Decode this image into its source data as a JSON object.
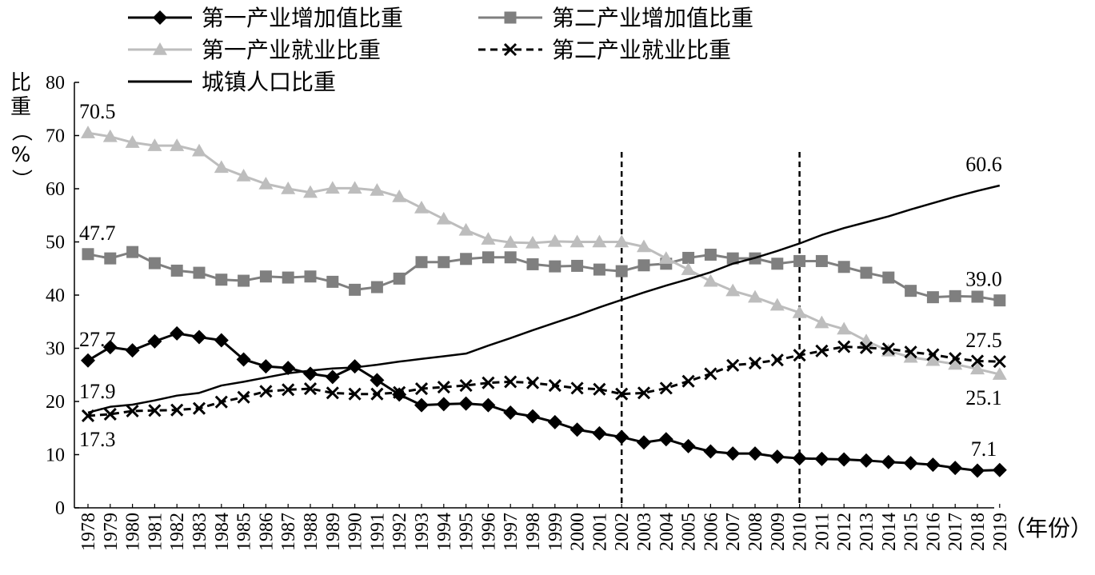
{
  "chart_data": {
    "type": "line",
    "ylabel": "比重（%）",
    "xunit": "（年份）",
    "ylim": [
      0,
      80
    ],
    "yticks": [
      0,
      10,
      20,
      30,
      40,
      50,
      60,
      70,
      80
    ],
    "grid": false,
    "legend_position": "top",
    "x": [
      "1978",
      "1979",
      "1980",
      "1981",
      "1982",
      "1983",
      "1984",
      "1985",
      "1986",
      "1987",
      "1988",
      "1989",
      "1990",
      "1991",
      "1992",
      "1993",
      "1994",
      "1995",
      "1996",
      "1997",
      "1998",
      "1999",
      "2000",
      "2001",
      "2002",
      "2003",
      "2004",
      "2005",
      "2006",
      "2007",
      "2008",
      "2009",
      "2010",
      "2011",
      "2012",
      "2013",
      "2014",
      "2015",
      "2016",
      "2017",
      "2018",
      "2019"
    ],
    "vertical_reference_lines": [
      "2002",
      "2010"
    ],
    "series": [
      {
        "name": "第一产业增加值比重",
        "color": "#000000",
        "marker": "diamond",
        "line_style": "solid",
        "values": [
          27.7,
          30.2,
          29.6,
          31.3,
          32.8,
          32.1,
          31.5,
          27.9,
          26.6,
          26.3,
          25.2,
          24.6,
          26.6,
          24.0,
          21.3,
          19.3,
          19.5,
          19.6,
          19.3,
          17.9,
          17.2,
          16.1,
          14.7,
          14.0,
          13.3,
          12.3,
          12.9,
          11.6,
          10.6,
          10.2,
          10.2,
          9.6,
          9.3,
          9.2,
          9.1,
          8.9,
          8.6,
          8.4,
          8.1,
          7.5,
          7.0,
          7.1
        ]
      },
      {
        "name": "第二产业增加值比重",
        "color": "#7f7f7f",
        "marker": "square",
        "line_style": "solid",
        "values": [
          47.7,
          46.9,
          48.1,
          46.0,
          44.6,
          44.2,
          42.9,
          42.7,
          43.5,
          43.3,
          43.5,
          42.5,
          41.0,
          41.5,
          43.1,
          46.2,
          46.2,
          46.8,
          47.1,
          47.1,
          45.8,
          45.4,
          45.5,
          44.8,
          44.5,
          45.6,
          45.9,
          47.0,
          47.6,
          46.9,
          46.9,
          45.9,
          46.4,
          46.4,
          45.3,
          44.2,
          43.3,
          40.8,
          39.6,
          39.8,
          39.7,
          39.0
        ]
      },
      {
        "name": "第一产业就业比重",
        "color": "#bdbdbd",
        "marker": "triangle",
        "line_style": "solid",
        "values": [
          70.5,
          69.8,
          68.7,
          68.1,
          68.1,
          67.1,
          64.0,
          62.4,
          60.9,
          60.0,
          59.3,
          60.1,
          60.1,
          59.7,
          58.5,
          56.4,
          54.3,
          52.2,
          50.5,
          49.9,
          49.8,
          50.1,
          50.0,
          50.0,
          50.0,
          49.1,
          46.9,
          44.8,
          42.6,
          40.8,
          39.6,
          38.1,
          36.7,
          34.8,
          33.6,
          31.4,
          29.5,
          28.3,
          27.7,
          27.0,
          26.1,
          25.1
        ]
      },
      {
        "name": "第二产业就业比重",
        "color": "#000000",
        "marker": "x",
        "line_style": "dashed",
        "values": [
          17.3,
          17.6,
          18.2,
          18.3,
          18.4,
          18.7,
          19.9,
          20.8,
          21.9,
          22.2,
          22.4,
          21.6,
          21.4,
          21.4,
          21.7,
          22.4,
          22.7,
          23.0,
          23.5,
          23.7,
          23.5,
          23.0,
          22.5,
          22.3,
          21.4,
          21.6,
          22.5,
          23.8,
          25.2,
          26.8,
          27.2,
          27.8,
          28.7,
          29.5,
          30.3,
          30.1,
          29.9,
          29.3,
          28.8,
          28.1,
          27.6,
          27.5
        ]
      },
      {
        "name": "城镇人口比重",
        "color": "#000000",
        "marker": "none",
        "line_style": "solid",
        "values": [
          17.9,
          19.0,
          19.4,
          20.2,
          21.1,
          21.6,
          23.0,
          23.7,
          24.5,
          25.3,
          25.8,
          26.2,
          26.4,
          26.9,
          27.5,
          28.0,
          28.5,
          29.0,
          30.5,
          31.9,
          33.4,
          34.8,
          36.2,
          37.7,
          39.1,
          40.5,
          41.8,
          43.0,
          44.3,
          45.9,
          47.0,
          48.3,
          49.7,
          51.3,
          52.6,
          53.7,
          54.8,
          56.1,
          57.3,
          58.5,
          59.6,
          60.6
        ]
      }
    ],
    "annotations": [
      {
        "text": "70.5",
        "x": "1978",
        "series": "第一产业就业比重",
        "side": "above"
      },
      {
        "text": "47.7",
        "x": "1978",
        "series": "第二产业增加值比重",
        "side": "above"
      },
      {
        "text": "27.7",
        "x": "1978",
        "series": "第一产业增加值比重",
        "side": "above"
      },
      {
        "text": "17.9",
        "x": "1978",
        "series": "城镇人口比重",
        "side": "above"
      },
      {
        "text": "17.3",
        "x": "1978",
        "series": "第二产业就业比重",
        "side": "below"
      },
      {
        "text": "60.6",
        "x": "2019",
        "series": "城镇人口比重",
        "side": "above"
      },
      {
        "text": "39.0",
        "x": "2019",
        "series": "第二产业增加值比重",
        "side": "above"
      },
      {
        "text": "27.5",
        "x": "2019",
        "series": "第二产业就业比重",
        "side": "above"
      },
      {
        "text": "25.1",
        "x": "2019",
        "series": "第一产业就业比重",
        "side": "below"
      },
      {
        "text": "7.1",
        "x": "2019",
        "series": "第一产业增加值比重",
        "side": "above"
      }
    ]
  }
}
